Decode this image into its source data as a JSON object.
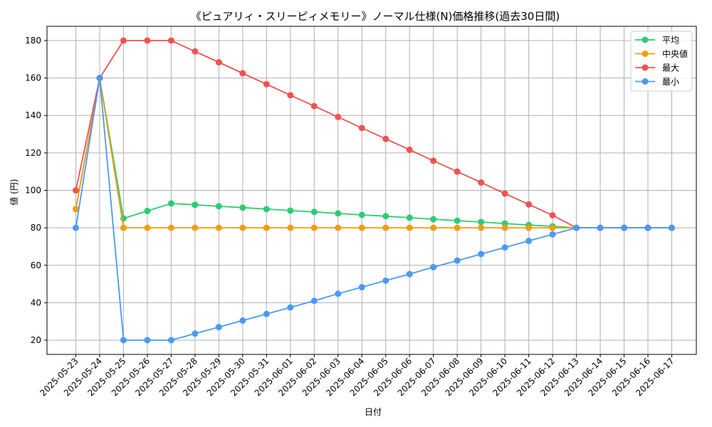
{
  "chart_data": {
    "type": "line",
    "title": "《ピュアリィ・スリーピィメモリー》ノーマル仕様(N)価格推移(過去30日間)",
    "xlabel": "日付",
    "ylabel": "値 (円)",
    "ylim": [
      12.4,
      187.6
    ],
    "yticks": [
      20,
      40,
      60,
      80,
      100,
      120,
      140,
      160,
      180
    ],
    "grid": true,
    "legend_position": "top-right",
    "categories": [
      "2025-05-23",
      "2025-05-24",
      "2025-05-25",
      "2025-05-26",
      "2025-05-27",
      "2025-05-28",
      "2025-05-29",
      "2025-05-30",
      "2025-05-31",
      "2025-06-01",
      "2025-06-02",
      "2025-06-03",
      "2025-06-04",
      "2025-06-05",
      "2025-06-06",
      "2025-06-07",
      "2025-06-08",
      "2025-06-09",
      "2025-06-10",
      "2025-06-11",
      "2025-06-12",
      "2025-06-13",
      "2025-06-14",
      "2025-06-15",
      "2025-06-16",
      "2025-06-17"
    ],
    "series": [
      {
        "name": "平均",
        "color": "#2ecc71",
        "values": [
          90,
          160,
          85,
          89,
          93,
          92.3,
          91.5,
          90.8,
          90,
          89.2,
          88.5,
          87.7,
          86.9,
          86.2,
          85.4,
          84.6,
          83.8,
          83.1,
          82.3,
          81.5,
          80.8,
          80,
          80,
          80,
          80,
          80
        ]
      },
      {
        "name": "中央値",
        "color": "#f39c12",
        "values": [
          90,
          160,
          80,
          80,
          80,
          80,
          80,
          80,
          80,
          80,
          80,
          80,
          80,
          80,
          80,
          80,
          80,
          80,
          80,
          80,
          80,
          80,
          80,
          80,
          80,
          80
        ]
      },
      {
        "name": "最大",
        "color": "#ef5350",
        "values": [
          100,
          160,
          180,
          180,
          180,
          174.2,
          168.4,
          162.5,
          156.7,
          150.8,
          145,
          139.2,
          133.3,
          127.5,
          121.7,
          115.8,
          110,
          104.2,
          98.3,
          92.5,
          86.7,
          80,
          80,
          80,
          80,
          80
        ]
      },
      {
        "name": "最小",
        "color": "#4a9af5",
        "values": [
          80,
          160,
          20,
          20,
          20,
          23.5,
          27,
          30.5,
          34,
          37.5,
          41,
          44.8,
          48.3,
          51.8,
          55.3,
          59,
          62.5,
          66,
          69.5,
          73,
          76.5,
          80,
          80,
          80,
          80,
          80
        ]
      }
    ]
  }
}
